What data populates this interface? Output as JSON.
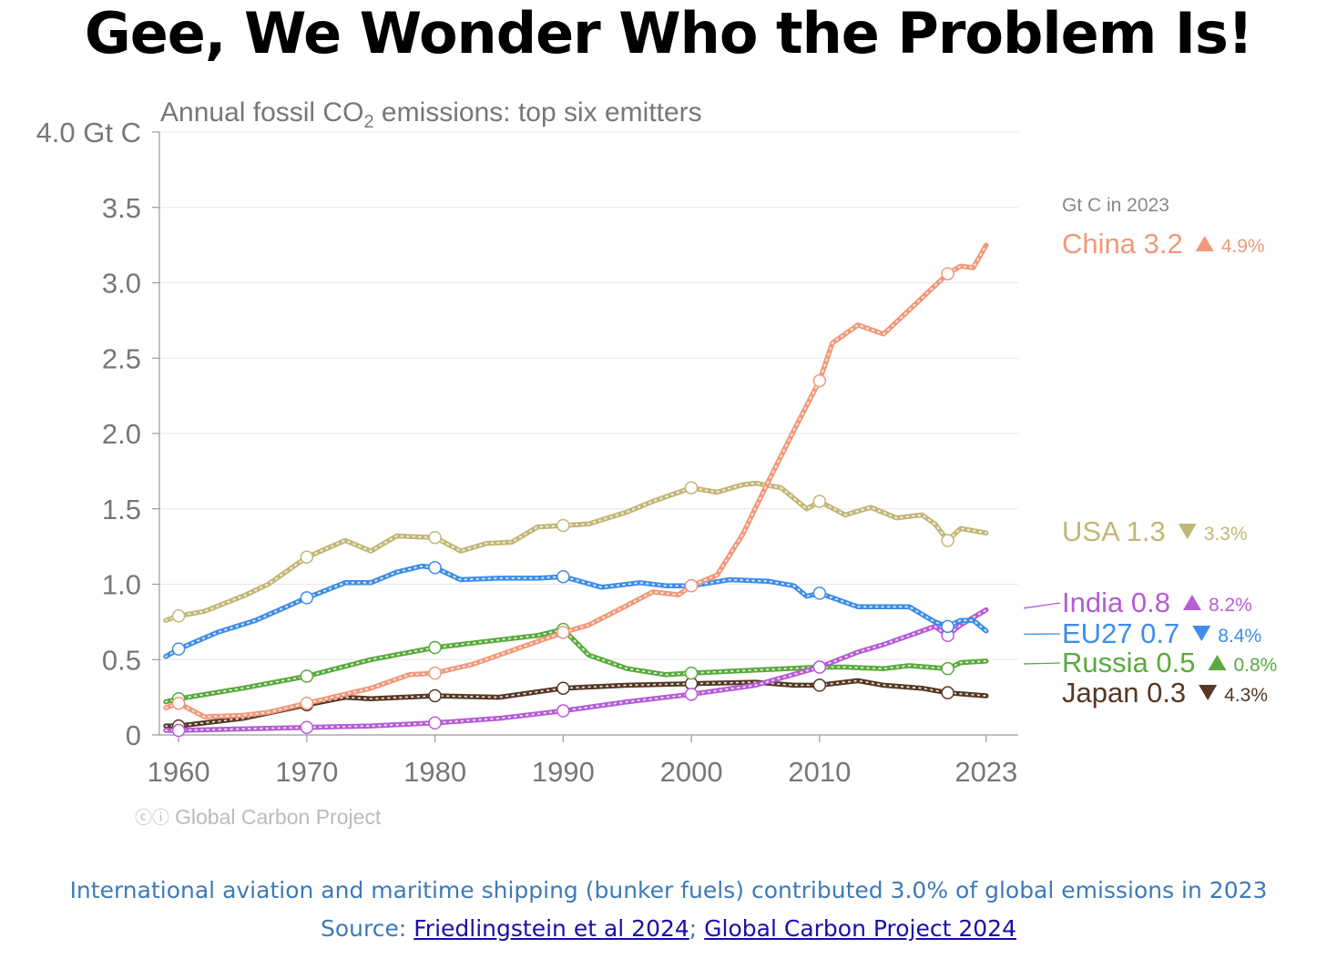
{
  "title": "Gee, We Wonder Who the Problem Is!",
  "footer": {
    "note": "International aviation and maritime shipping (bunker fuels) contributed 3.0% of global emissions in 2023",
    "source_prefix": "Source: ",
    "source_link_1": "Friedlingstein et al 2024",
    "source_sep": "; ",
    "source_link_2": "Global Carbon Project 2024"
  },
  "credit": "Global Carbon Project",
  "chart_data": {
    "type": "line",
    "title": "Annual fossil CO",
    "title_sub": "2",
    "title_rest": " emissions: top six emitters",
    "ylim": [
      0,
      4.0
    ],
    "xlim": [
      1958.5,
      2025.5
    ],
    "yticks": [
      {
        "v": 4.0,
        "label": "4.0 Gt C"
      },
      {
        "v": 3.5,
        "label": "3.5"
      },
      {
        "v": 3.0,
        "label": "3.0"
      },
      {
        "v": 2.5,
        "label": "2.5"
      },
      {
        "v": 2.0,
        "label": "2.0"
      },
      {
        "v": 1.5,
        "label": "1.5"
      },
      {
        "v": 1.0,
        "label": "1.0"
      },
      {
        "v": 0.5,
        "label": "0.5"
      },
      {
        "v": 0,
        "label": "0"
      }
    ],
    "xticks": [
      {
        "v": 1960,
        "label": "1960"
      },
      {
        "v": 1970,
        "label": "1970"
      },
      {
        "v": 1980,
        "label": "1980"
      },
      {
        "v": 1990,
        "label": "1990"
      },
      {
        "v": 2000,
        "label": "2000"
      },
      {
        "v": 2010,
        "label": "2010"
      },
      {
        "v": 2023,
        "label": "2023"
      }
    ],
    "grid": true,
    "legend_header": "Gt C in 2023",
    "series": [
      {
        "name": "China",
        "color": "#f0997a",
        "value_label": "3.2",
        "change": "4.9%",
        "trend": "up",
        "x": [
          1959,
          1960,
          1962,
          1965,
          1967,
          1970,
          1973,
          1975,
          1978,
          1980,
          1983,
          1986,
          1988,
          1990,
          1992,
          1995,
          1997,
          1999,
          2000,
          2002,
          2004,
          2006,
          2008,
          2010,
          2011,
          2013,
          2015,
          2017,
          2019,
          2020,
          2021,
          2022,
          2023
        ],
        "y": [
          0.18,
          0.21,
          0.12,
          0.13,
          0.15,
          0.21,
          0.27,
          0.31,
          0.4,
          0.41,
          0.47,
          0.56,
          0.62,
          0.68,
          0.73,
          0.86,
          0.95,
          0.93,
          0.99,
          1.06,
          1.33,
          1.68,
          2.02,
          2.35,
          2.6,
          2.72,
          2.66,
          2.82,
          2.98,
          3.06,
          3.11,
          3.1,
          3.25
        ]
      },
      {
        "name": "USA",
        "color": "#c2b777",
        "value_label": "1.3",
        "change": "3.3%",
        "trend": "down",
        "x": [
          1959,
          1960,
          1962,
          1965,
          1967,
          1970,
          1973,
          1975,
          1977,
          1980,
          1982,
          1984,
          1986,
          1988,
          1990,
          1992,
          1995,
          1997,
          2000,
          2002,
          2004,
          2005,
          2007,
          2009,
          2010,
          2012,
          2014,
          2016,
          2018,
          2019,
          2020,
          2021,
          2023
        ],
        "y": [
          0.76,
          0.79,
          0.82,
          0.92,
          1.0,
          1.18,
          1.29,
          1.22,
          1.32,
          1.31,
          1.22,
          1.27,
          1.28,
          1.38,
          1.39,
          1.4,
          1.48,
          1.55,
          1.64,
          1.61,
          1.66,
          1.67,
          1.64,
          1.5,
          1.55,
          1.46,
          1.51,
          1.44,
          1.46,
          1.4,
          1.29,
          1.37,
          1.34
        ]
      },
      {
        "name": "India",
        "color": "#b65cd6",
        "value_label": "0.8",
        "change": "8.2%",
        "trend": "up",
        "x": [
          1959,
          1960,
          1965,
          1970,
          1975,
          1980,
          1985,
          1990,
          1995,
          2000,
          2005,
          2010,
          2013,
          2015,
          2017,
          2019,
          2020,
          2021,
          2023
        ],
        "y": [
          0.03,
          0.03,
          0.04,
          0.05,
          0.06,
          0.08,
          0.11,
          0.16,
          0.22,
          0.27,
          0.33,
          0.45,
          0.55,
          0.6,
          0.66,
          0.72,
          0.66,
          0.73,
          0.83
        ]
      },
      {
        "name": "EU27",
        "color": "#3f8de8",
        "value_label": "0.7",
        "change": "8.4%",
        "trend": "down",
        "x": [
          1959,
          1960,
          1963,
          1966,
          1970,
          1973,
          1975,
          1977,
          1979,
          1980,
          1982,
          1985,
          1988,
          1990,
          1993,
          1996,
          1998,
          2000,
          2003,
          2006,
          2008,
          2009,
          2010,
          2013,
          2015,
          2017,
          2019,
          2020,
          2021,
          2022,
          2023
        ],
        "y": [
          0.52,
          0.57,
          0.68,
          0.76,
          0.91,
          1.01,
          1.01,
          1.08,
          1.12,
          1.11,
          1.03,
          1.04,
          1.04,
          1.05,
          0.98,
          1.01,
          0.99,
          0.99,
          1.03,
          1.02,
          0.99,
          0.92,
          0.94,
          0.85,
          0.85,
          0.85,
          0.75,
          0.72,
          0.76,
          0.76,
          0.69
        ]
      },
      {
        "name": "Russia",
        "color": "#5aaa3f",
        "value_label": "0.5",
        "change": "0.8%",
        "trend": "up",
        "x": [
          1959,
          1960,
          1965,
          1970,
          1975,
          1980,
          1985,
          1988,
          1990,
          1992,
          1995,
          1998,
          2000,
          2005,
          2010,
          2012,
          2015,
          2017,
          2020,
          2021,
          2023
        ],
        "y": [
          0.22,
          0.24,
          0.31,
          0.39,
          0.5,
          0.58,
          0.63,
          0.66,
          0.7,
          0.53,
          0.44,
          0.4,
          0.41,
          0.43,
          0.45,
          0.45,
          0.44,
          0.46,
          0.44,
          0.48,
          0.49
        ]
      },
      {
        "name": "Japan",
        "color": "#563825",
        "value_label": "0.3",
        "change": "4.3%",
        "trend": "down",
        "x": [
          1959,
          1960,
          1965,
          1970,
          1973,
          1975,
          1980,
          1985,
          1990,
          1995,
          2000,
          2005,
          2008,
          2010,
          2013,
          2015,
          2018,
          2020,
          2023
        ],
        "y": [
          0.06,
          0.06,
          0.11,
          0.2,
          0.25,
          0.24,
          0.26,
          0.25,
          0.31,
          0.33,
          0.34,
          0.35,
          0.33,
          0.33,
          0.36,
          0.33,
          0.31,
          0.28,
          0.26
        ]
      }
    ],
    "highlight_years": [
      1960,
      1970,
      1980,
      1990,
      2000,
      2010,
      2020
    ]
  }
}
